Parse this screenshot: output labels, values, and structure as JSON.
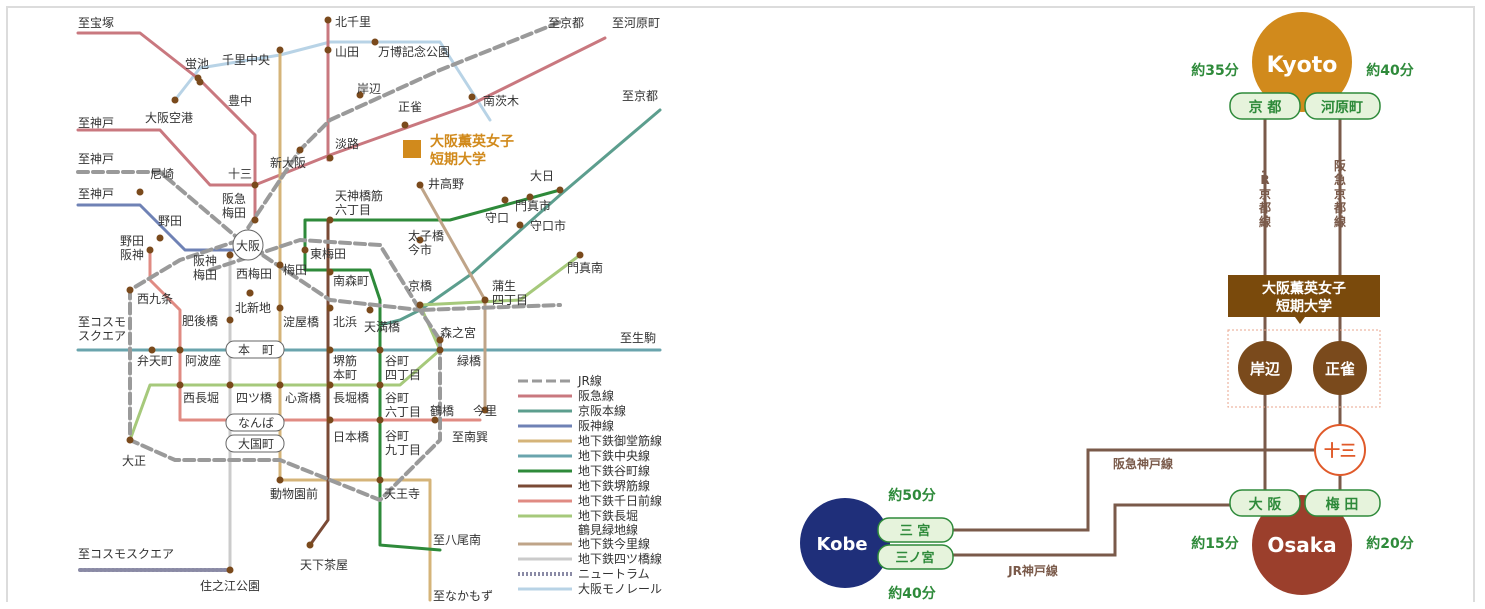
{
  "left_map": {
    "directions": {
      "to_takarazuka": "至宝塚",
      "to_kobe_1": "至神戸",
      "to_kobe_2": "至神戸",
      "to_kobe_3": "至神戸",
      "to_kyoto_1": "至京都",
      "to_kawaramachi": "至河原町",
      "to_kyoto_2": "至京都",
      "to_cosmo": "至コスモ\nスクエア",
      "to_ikoma": "至生駒",
      "to_minaminomiya": "至南巽",
      "to_yao": "至八尾南",
      "to_nakamozu": "至なかもず",
      "to_cosmo2": "至コスモスクエア"
    },
    "stations": {
      "kitasenri": "北千里",
      "yamada": "山田",
      "banpaku": "万博記念公園",
      "hotarugaike": "蛍池",
      "senri_chuo": "千里中央",
      "toyonaka": "豊中",
      "osaka_airport": "大阪空港",
      "kishibe": "岸辺",
      "shojaku": "正雀",
      "minami_ibaraki": "南茨木",
      "awaji": "淡路",
      "shin_osaka": "新大阪",
      "juso": "十三",
      "amagasaki": "尼崎",
      "hankyu_umeda": "阪急\n梅田",
      "noda": "野田",
      "noda_hanshin": "野田\n阪神",
      "osaka": "大阪",
      "tenjinbashi": "天神橋筋\n六丁目",
      "iketakano": "井高野",
      "dainichi": "大日",
      "moriguchi": "守口",
      "kadoma": "門真市",
      "moriguchishi": "守口市",
      "taishibashi": "太子橋\n今市",
      "kadoma_minami": "門真南",
      "higashi_umeda": "東梅田",
      "hanshin_umeda": "阪神\n梅田",
      "nishi_umeda": "西梅田",
      "umeda": "梅田",
      "minami_morimachi": "南森町",
      "kyobashi": "京橋",
      "gamo": "蒲生\n四丁目",
      "nishikujo": "西九条",
      "kitashinchi": "北新地",
      "higobashi": "肥後橋",
      "yodoyabashi": "淀屋橋",
      "kitahama": "北浜",
      "tenmabashi": "天満橋",
      "morinomiya": "森之宮",
      "hommachi": "本　町",
      "bentencho": "弁天町",
      "awaza": "阿波座",
      "sakaisuji_hommachi": "堺筋\n本町",
      "tanimachi4": "谷町\n四丁目",
      "midoribashi": "緑橋",
      "nishinagahori": "西長堀",
      "yotsubashi": "四ツ橋",
      "shinsaibashi": "心斎橋",
      "nagahoribashi": "長堀橋",
      "tanimachi6": "谷町\n六丁目",
      "tsuruhashi": "鶴橋",
      "imazato": "今里",
      "namba": "なんば",
      "daikokucho": "大国町",
      "nipponbashi": "日本橋",
      "tanimachi9": "谷町\n九丁目",
      "taisho": "大正",
      "dobutsuen": "動物園前",
      "tennoji": "天王寺",
      "tengachaya": "天下茶屋",
      "suminoe": "住之江公園"
    },
    "school_label": "大阪薫英女子\n短期大学",
    "legend": [
      {
        "label": "JR線",
        "color": "#9a9a9a",
        "style": "dashed"
      },
      {
        "label": "阪急線",
        "color": "#c9787f",
        "style": "solid"
      },
      {
        "label": "京阪本線",
        "color": "#5c9e8e",
        "style": "solid"
      },
      {
        "label": "阪神線",
        "color": "#6f82b5",
        "style": "solid"
      },
      {
        "label": "地下鉄御堂筋線",
        "color": "#d5b479",
        "style": "solid"
      },
      {
        "label": "地下鉄中央線",
        "color": "#6aa4ad",
        "style": "solid"
      },
      {
        "label": "地下鉄谷町線",
        "color": "#2e8a3a",
        "style": "solid"
      },
      {
        "label": "地下鉄堺筋線",
        "color": "#7a4a35",
        "style": "solid"
      },
      {
        "label": "地下鉄千日前線",
        "color": "#e08b83",
        "style": "solid"
      },
      {
        "label": "地下鉄長堀\n鶴見緑地線",
        "color": "#a6c97b",
        "style": "solid"
      },
      {
        "label": "地下鉄今里線",
        "color": "#bfa488",
        "style": "solid"
      },
      {
        "label": "地下鉄四ツ橋線",
        "color": "#cbcbcb",
        "style": "solid"
      },
      {
        "label": "ニュートラム",
        "color": "#8a8aa5",
        "style": "dotted"
      },
      {
        "label": "大阪モノレール",
        "color": "#b8d3e6",
        "style": "solid"
      }
    ]
  },
  "right_diagram": {
    "kyoto": {
      "name": "Kyoto",
      "time_left": "約35分",
      "time_right": "約40分",
      "left_station": "京 都",
      "right_station": "河原町"
    },
    "osaka": {
      "name": "Osaka",
      "time_left": "約15分",
      "time_right": "約20分",
      "left_station": "大 阪",
      "right_station": "梅 田"
    },
    "kobe": {
      "name": "Kobe",
      "time_top": "約50分",
      "time_bottom": "約40分",
      "top_station": "三 宮",
      "bottom_station": "三ノ宮"
    },
    "school": "大阪薫英女子\n短期大学",
    "kishibe": "岸辺",
    "shojaku": "正雀",
    "juso": "十三",
    "jr_kyoto_line": "JR\n京都線",
    "hankyu_kyoto_line": "阪急\n京都線",
    "hankyu_kobe_line": "阪急神戸線",
    "jr_kobe_line": "JR神戸線",
    "colors": {
      "kyoto": "#d18a1c",
      "osaka": "#9b3f2c",
      "kobe": "#1f2f7a",
      "school": "#7a4a0c",
      "node": "#7a4a1c",
      "badge": "#2e8a3a",
      "juso": "#e05a2a",
      "line": "#7a5a4a"
    }
  }
}
